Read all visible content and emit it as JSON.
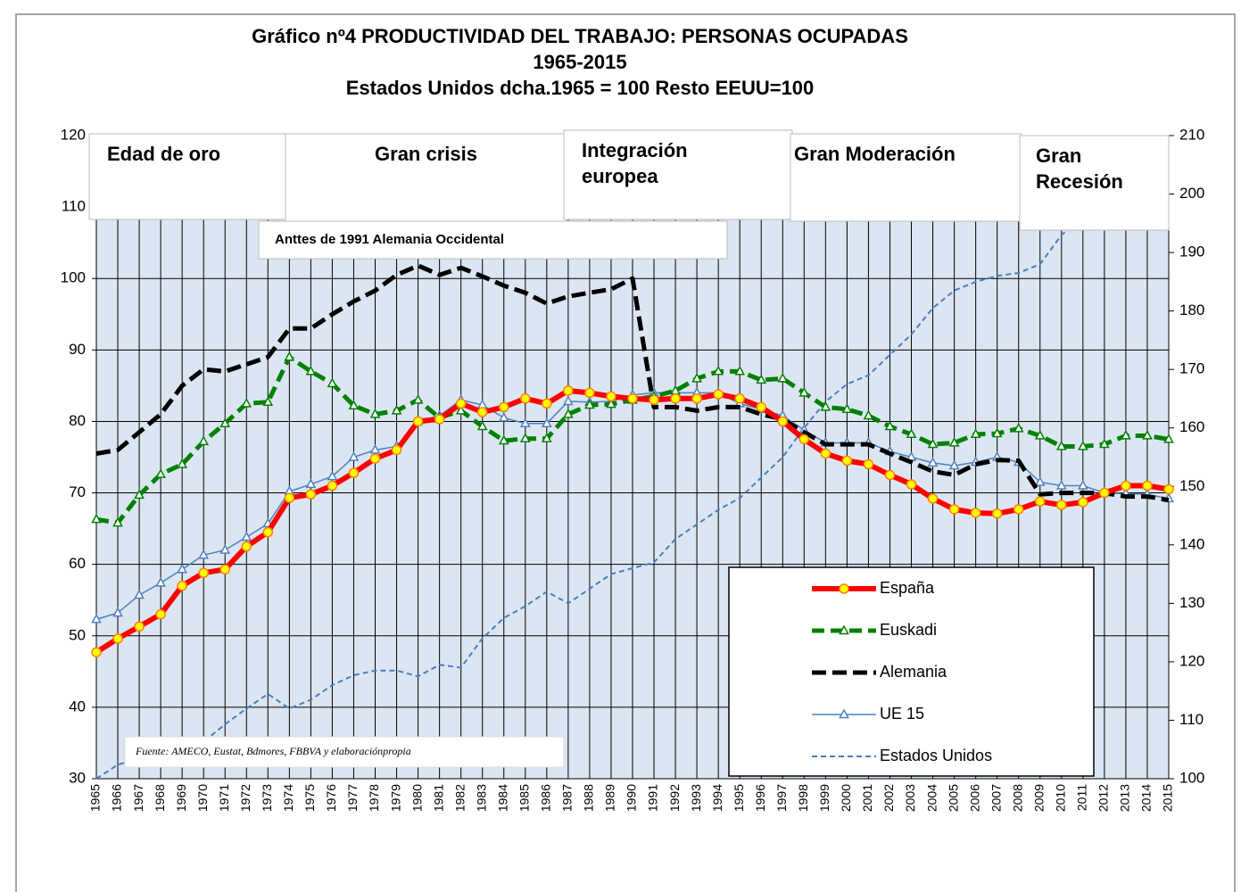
{
  "chart_data": {
    "type": "line",
    "title": "Gráfico nº4   PRODUCTIVIDAD DEL TRABAJO: PERSONAS OCUPADAS",
    "subtitle": [
      "1965-2015",
      "Estados Unidos dcha.1965 = 100 Resto EEUU=100"
    ],
    "x": [
      1965,
      1966,
      1967,
      1968,
      1969,
      1970,
      1971,
      1972,
      1973,
      1974,
      1975,
      1976,
      1977,
      1978,
      1979,
      1980,
      1981,
      1982,
      1983,
      1984,
      1985,
      1986,
      1987,
      1988,
      1989,
      1990,
      1991,
      1992,
      1993,
      1994,
      1995,
      1996,
      1997,
      1998,
      1999,
      2000,
      2001,
      2002,
      2003,
      2004,
      2005,
      2006,
      2007,
      2008,
      2009,
      2010,
      2011,
      2012,
      2013,
      2014,
      2015
    ],
    "xlim": [
      1965,
      2015
    ],
    "ylim": [
      30,
      120
    ],
    "yticks": [
      30,
      40,
      50,
      60,
      70,
      80,
      90,
      100,
      110,
      120
    ],
    "y2lim": [
      100,
      210
    ],
    "y2ticks": [
      100,
      110,
      120,
      130,
      140,
      150,
      160,
      170,
      180,
      190,
      200,
      210
    ],
    "grid": true,
    "series": [
      {
        "name": "España",
        "color": "#ff0000",
        "marker": "circle",
        "dash": "none",
        "width": 6,
        "values": [
          47.7,
          49.6,
          51.3,
          53,
          57,
          58.8,
          59.3,
          62.5,
          64.5,
          69.3,
          69.8,
          71,
          72.8,
          74.8,
          76,
          80,
          80.3,
          82.5,
          81.3,
          82,
          83.2,
          82.5,
          84.3,
          84,
          83.5,
          83.2,
          83,
          83.2,
          83.2,
          83.8,
          83.2,
          82,
          80,
          77.5,
          75.5,
          74.5,
          74,
          72.5,
          71.2,
          69.2,
          67.7,
          67.2,
          67.1,
          67.7,
          68.8,
          68.3,
          68.7,
          70,
          71,
          71,
          70.5
        ]
      },
      {
        "name": "Euskadi",
        "color": "#008000",
        "marker": "triangle",
        "dash": "14 7",
        "width": 5,
        "values": [
          66.3,
          65.8,
          69.7,
          72.6,
          74,
          77.2,
          79.7,
          82.5,
          82.7,
          89,
          87,
          85.3,
          82.2,
          81,
          81.5,
          83,
          80.5,
          81.5,
          79.3,
          77.3,
          77.6,
          77.6,
          81,
          82.3,
          82.4,
          83,
          83.5,
          84.3,
          86,
          87,
          87,
          85.8,
          86,
          84,
          82,
          81.7,
          80.8,
          79.3,
          78.2,
          76.8,
          77,
          78.2,
          78.3,
          79,
          78,
          76.5,
          76.5,
          76.8,
          78,
          78,
          77.5
        ]
      },
      {
        "name": "Alemania",
        "color": "#000000",
        "marker": "none",
        "dash": "16 7",
        "width": 5,
        "values": [
          75.5,
          76,
          78.5,
          81,
          85,
          87.3,
          87,
          88,
          89,
          93,
          93,
          95,
          96.8,
          98.3,
          100.5,
          101.8,
          100.5,
          101.5,
          100.3,
          99,
          98,
          96.5,
          97.5,
          98,
          98.5,
          100,
          82,
          82,
          81.5,
          82,
          82,
          81,
          80.3,
          78.5,
          76.8,
          76.8,
          76.8,
          75.5,
          74.3,
          73,
          72.5,
          74,
          74.6,
          74.5,
          69.8,
          70,
          70,
          70,
          69.5,
          69.5,
          69
        ]
      },
      {
        "name": "UE 15",
        "color": "#4f81bd",
        "marker": "triangle",
        "dash": "none",
        "width": 1.5,
        "values": [
          52.3,
          53.2,
          55.7,
          57.4,
          59.3,
          61.3,
          62,
          63.8,
          65.7,
          70.2,
          71.2,
          72.3,
          75,
          76,
          76.5,
          80,
          80.8,
          83,
          82.3,
          80.5,
          79.7,
          79.7,
          82.8,
          82.7,
          82.8,
          83.7,
          84,
          84,
          84,
          84,
          82.5,
          81.7,
          80.8,
          78.8,
          77,
          77,
          77,
          75.8,
          75,
          74.2,
          73.8,
          74.3,
          75,
          74.3,
          71.5,
          71,
          71,
          70,
          69.9,
          69.8,
          69.2
        ]
      },
      {
        "name": "Estados Unidos",
        "color": "#4a7ebb",
        "marker": "none",
        "dash": "6 4",
        "width": 2,
        "axis": "y2",
        "values": [
          100,
          102.4,
          103.5,
          104.2,
          104.6,
          106.3,
          109.3,
          112,
          114.5,
          112,
          113.5,
          116,
          117.7,
          118.5,
          118.5,
          117.5,
          119.5,
          119,
          124,
          127.5,
          129.5,
          132,
          130,
          132.5,
          135,
          136,
          137,
          141,
          143.5,
          146,
          148,
          151.5,
          155,
          160,
          164.5,
          167.5,
          169,
          172.5,
          176,
          180.5,
          183.5,
          185,
          186,
          186.5,
          188,
          193,
          196,
          198,
          199,
          201,
          203
        ]
      }
    ],
    "annotations": [
      {
        "lines": [
          "Edad de oro"
        ]
      },
      {
        "lines": [
          "Gran crisis"
        ]
      },
      {
        "lines": [
          "Integración",
          "europea"
        ]
      },
      {
        "lines": [
          "Gran Moderación"
        ]
      },
      {
        "lines": [
          "Gran",
          "Recesión"
        ]
      }
    ],
    "note": "Anttes de 1991 Alemania Occidental",
    "source": "Fuente: AMECO, Eustat, Bdmores, FBBVA y elaboraciónpropia"
  }
}
